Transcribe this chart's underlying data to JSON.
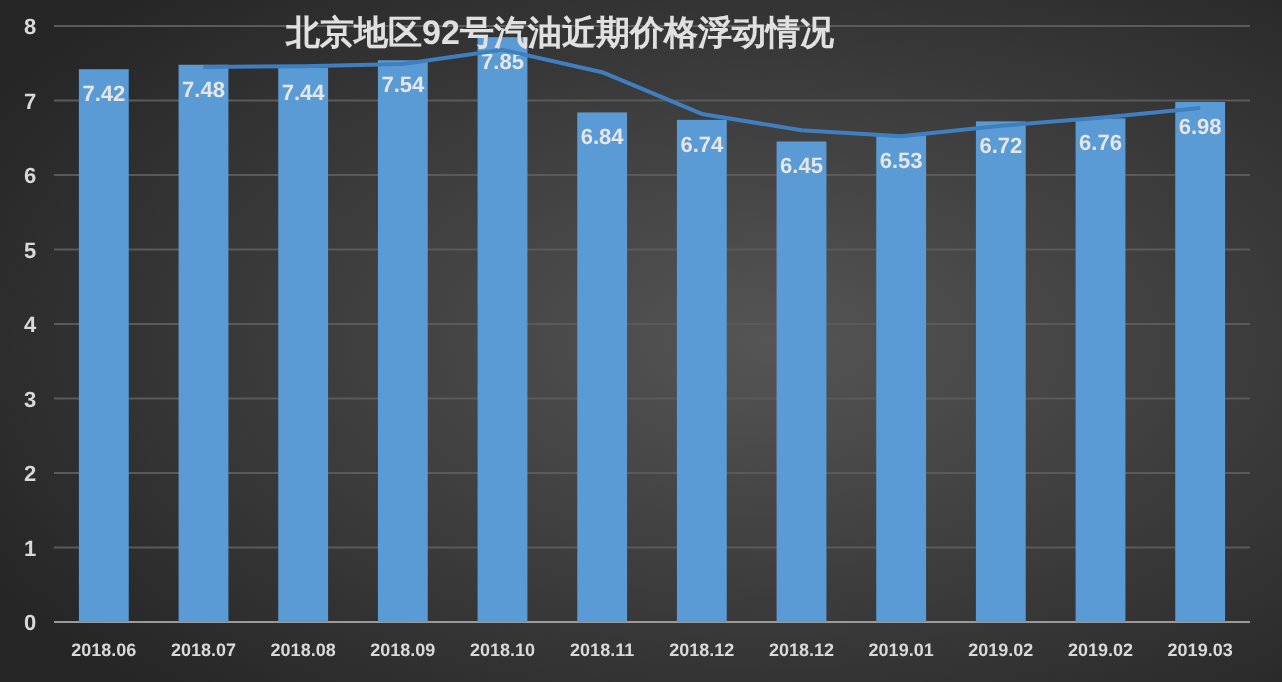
{
  "chart_data": {
    "type": "bar",
    "title": "北京地区92号汽油近期价格浮动情况",
    "categories": [
      "2018.06",
      "2018.07",
      "2018.08",
      "2018.09",
      "2018.10",
      "2018.11",
      "2018.12",
      "2018.12",
      "2019.01",
      "2019.02",
      "2019.02",
      "2019.03"
    ],
    "series": [
      {
        "color": "#5b9bd5",
        "values": [
          7.42,
          7.48,
          7.44,
          7.54,
          7.85,
          6.84,
          6.74,
          6.45,
          6.53,
          6.72,
          6.76,
          6.98
        ],
        "value_labels": [
          "7.42",
          "7.48",
          "7.44",
          "7.54",
          "7.85",
          "6.84",
          "6.74",
          "6.45",
          "6.53",
          "6.72",
          "6.76",
          "6.98"
        ]
      },
      {
        "type": "line",
        "color": "#3f7fc0",
        "values": [
          null,
          7.45,
          7.46,
          7.49,
          7.68,
          7.38,
          6.82,
          6.6,
          6.52,
          6.66,
          6.77,
          6.9
        ]
      }
    ],
    "ylim": [
      0,
      8
    ],
    "yticks": [
      0,
      1,
      2,
      3,
      4,
      5,
      6,
      7,
      8
    ],
    "grid": "y"
  }
}
